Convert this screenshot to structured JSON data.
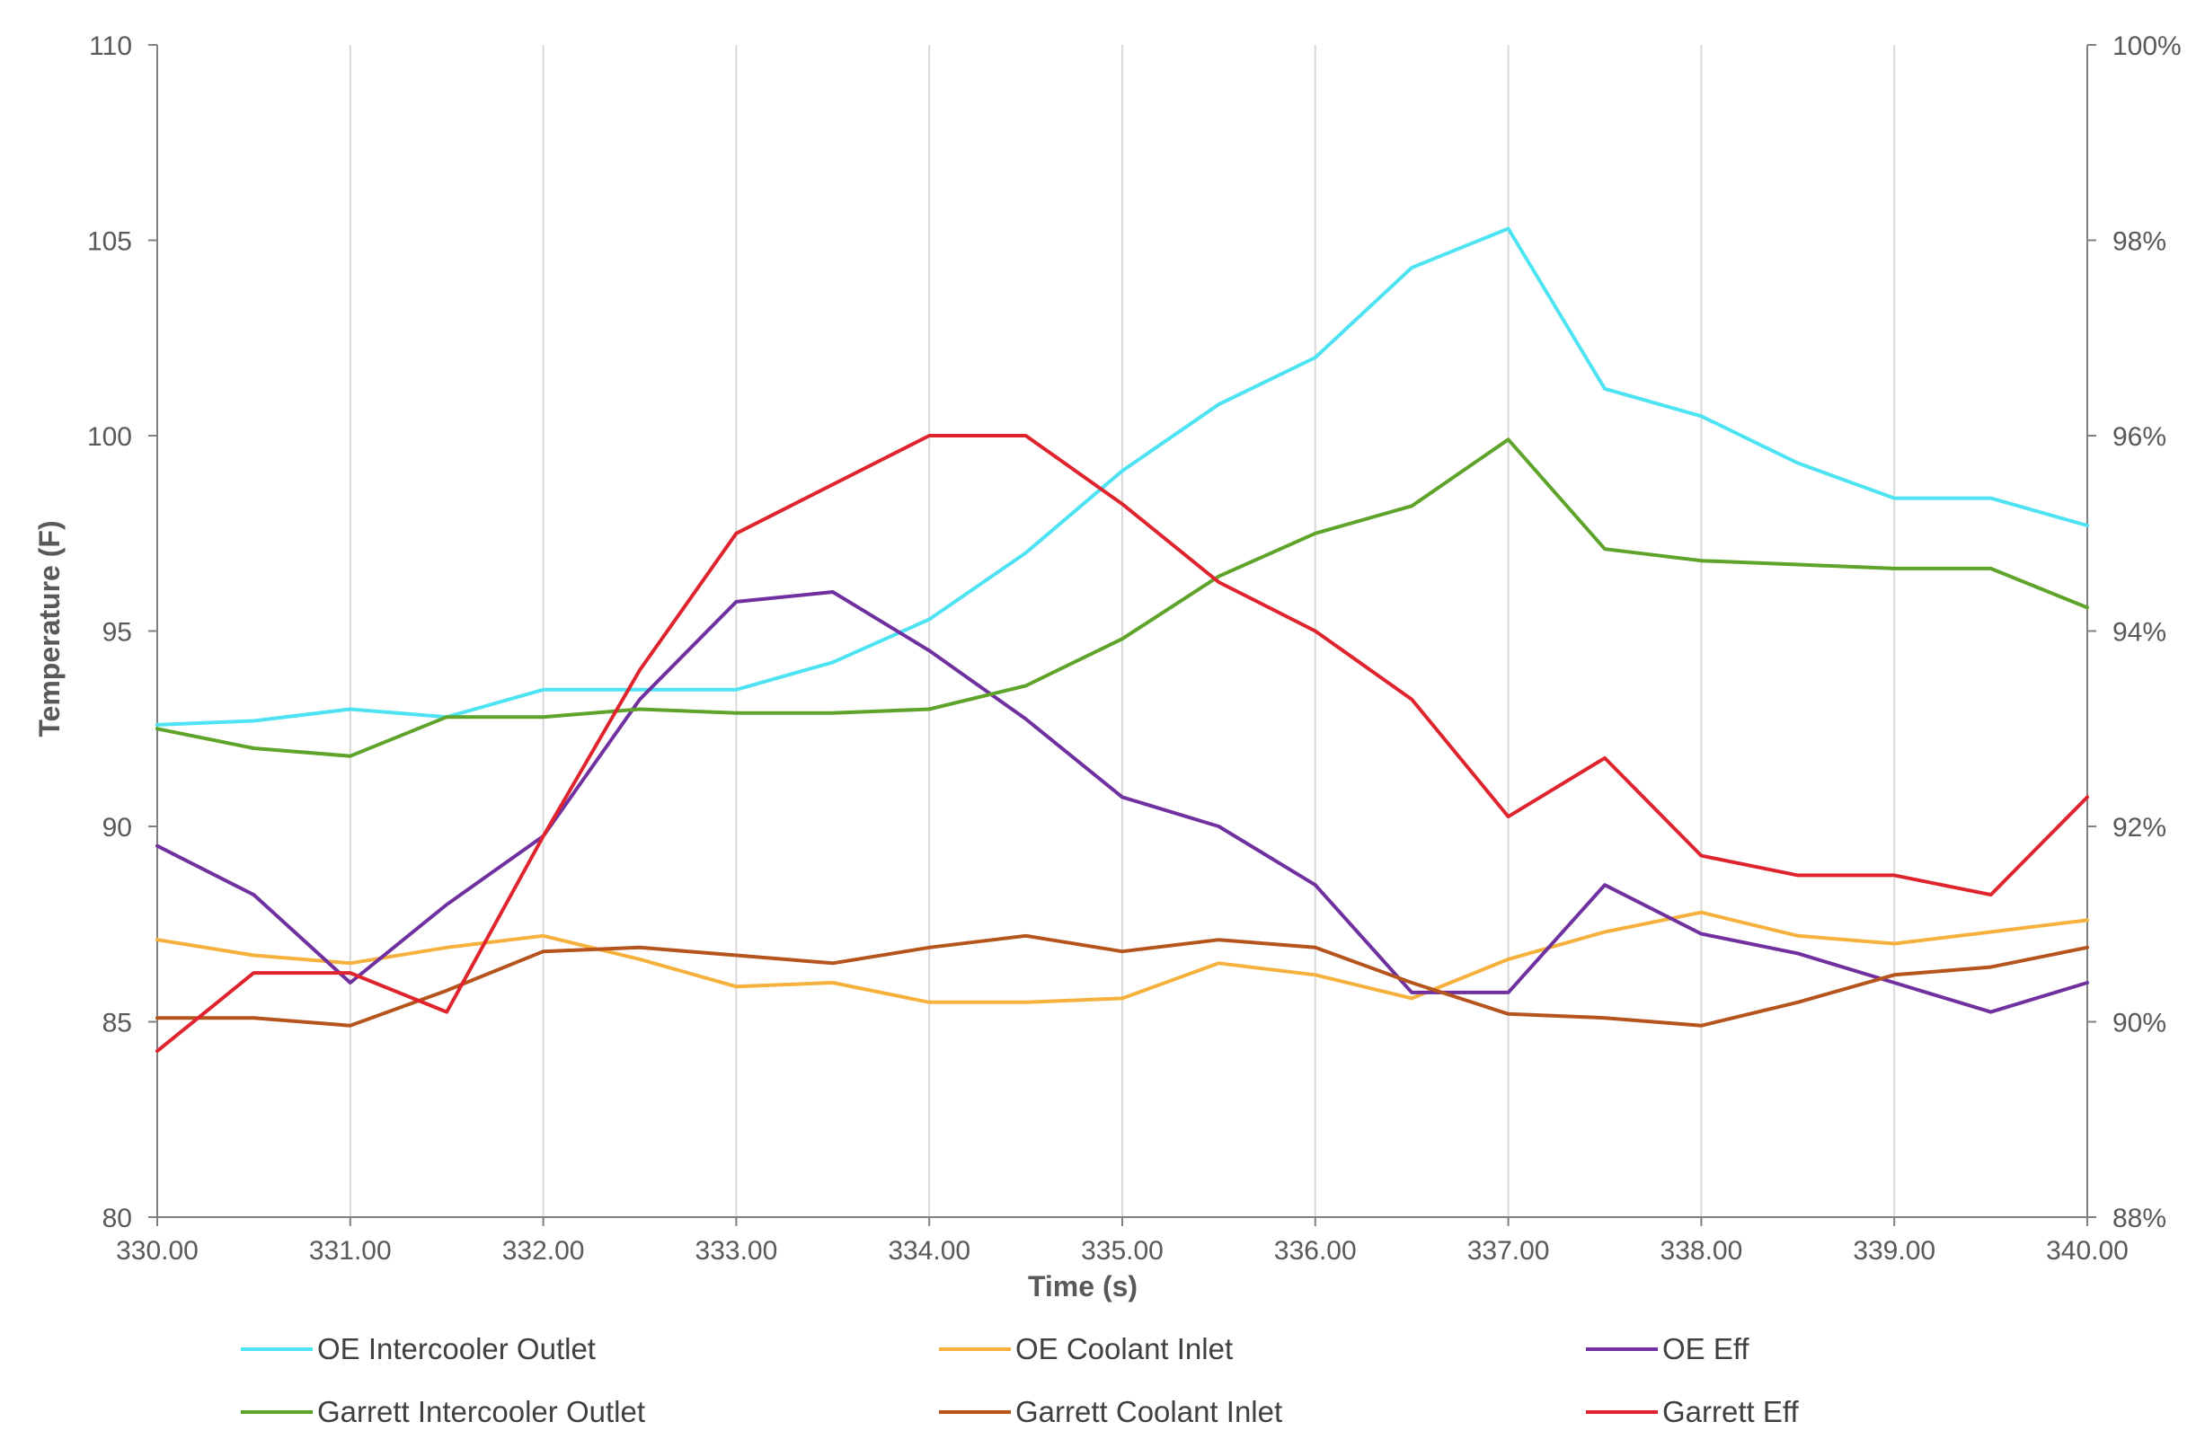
{
  "chart_data": {
    "type": "line",
    "title": "",
    "xlabel": "Time (s)",
    "ylabel": "Temperature (F)",
    "y2label": "",
    "xlim": [
      330,
      340
    ],
    "ylim": [
      80,
      110
    ],
    "y2lim": [
      0.88,
      1.0
    ],
    "x_ticks": [
      "330.00",
      "331.00",
      "332.00",
      "333.00",
      "334.00",
      "335.00",
      "336.00",
      "337.00",
      "338.00",
      "339.00",
      "340.00"
    ],
    "y_ticks": [
      "80",
      "85",
      "90",
      "95",
      "100",
      "105",
      "110"
    ],
    "y2_ticks": [
      "88%",
      "90%",
      "92%",
      "94%",
      "96%",
      "98%",
      "100%"
    ],
    "grid": "vertical",
    "legend_position": "bottom",
    "x": [
      330,
      330.5,
      331,
      331.5,
      332,
      332.5,
      333,
      333.5,
      334,
      334.5,
      335,
      335.5,
      336,
      336.5,
      337,
      337.5,
      338,
      338.5,
      339,
      339.5,
      340
    ],
    "series": [
      {
        "name": "OE Intercooler Outlet",
        "axis": "left",
        "color": "#4ee3f2",
        "values": [
          92.6,
          92.7,
          93.0,
          92.8,
          93.5,
          93.5,
          93.5,
          94.2,
          95.3,
          97.0,
          99.1,
          100.8,
          102.0,
          104.3,
          105.3,
          101.2,
          100.5,
          99.3,
          98.4,
          98.4,
          97.7
        ]
      },
      {
        "name": "OE Coolant Inlet",
        "axis": "left",
        "color": "#f5b13c",
        "values": [
          87.1,
          86.7,
          86.5,
          86.9,
          87.2,
          86.6,
          85.9,
          86.0,
          85.5,
          85.5,
          85.6,
          86.5,
          86.2,
          85.6,
          86.6,
          87.3,
          87.8,
          87.2,
          87.0,
          87.3,
          87.6
        ]
      },
      {
        "name": "OE Eff",
        "axis": "right",
        "color": "#7030a0",
        "values": [
          0.918,
          0.913,
          0.904,
          0.912,
          0.919,
          0.933,
          0.943,
          0.944,
          0.938,
          0.931,
          0.923,
          0.92,
          0.914,
          0.903,
          0.903,
          0.914,
          0.909,
          0.907,
          0.904,
          0.901,
          0.904
        ]
      },
      {
        "name": "Garrett Intercooler Outlet",
        "axis": "left",
        "color": "#5ea32a",
        "values": [
          92.5,
          92.0,
          91.8,
          92.8,
          92.8,
          93.0,
          92.9,
          92.9,
          93.0,
          93.6,
          94.8,
          96.4,
          97.5,
          98.2,
          99.9,
          97.1,
          96.8,
          96.7,
          96.6,
          96.6,
          95.6
        ]
      },
      {
        "name": "Garrett Coolant Inlet",
        "axis": "left",
        "color": "#b5541c",
        "values": [
          85.1,
          85.1,
          84.9,
          85.8,
          86.8,
          86.9,
          86.7,
          86.5,
          86.9,
          87.2,
          86.8,
          87.1,
          86.9,
          86.0,
          85.2,
          85.1,
          84.9,
          85.5,
          86.2,
          86.4,
          86.9
        ]
      },
      {
        "name": "Garrett Eff",
        "axis": "right",
        "color": "#e0242e",
        "values": [
          0.897,
          0.905,
          0.905,
          0.901,
          0.919,
          0.936,
          0.95,
          0.955,
          0.96,
          0.96,
          0.953,
          0.945,
          0.94,
          0.933,
          0.921,
          0.927,
          0.917,
          0.915,
          0.915,
          0.913,
          0.923
        ]
      }
    ]
  }
}
